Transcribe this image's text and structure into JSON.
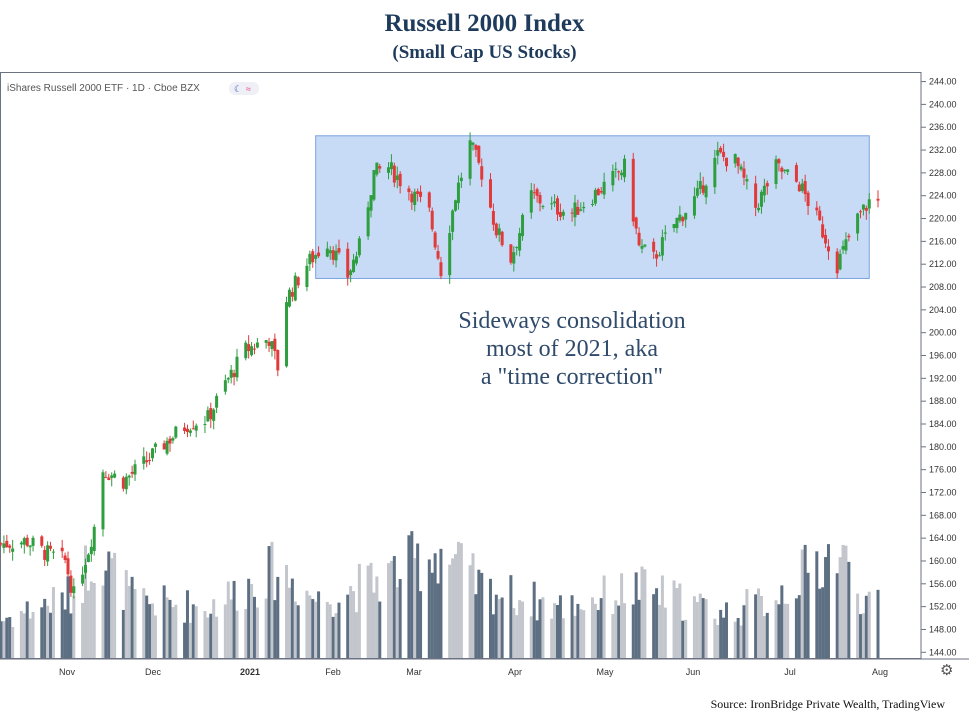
{
  "title": "Russell 2000 Index",
  "subtitle": "(Small Cap US Stocks)",
  "source": "Source: IronBridge Private Wealth, TradingView",
  "legend": {
    "symbol": "iShares Russell 2000 ETF · 1D · Cboe BZX",
    "icons": [
      "moon-icon",
      "wave-icon"
    ]
  },
  "annotation": [
    "Sideways consolidation",
    "most of 2021, aka",
    "a \"time correction\""
  ],
  "colors": {
    "up": "#26a69a",
    "up_body": "#2e9e3e",
    "down": "#e03a3a",
    "vol_dark": "#5d6f82",
    "vol_light": "#c3c6cc",
    "band_fill": "#c7dbf7",
    "band_stroke": "#7aa2df",
    "annotation": "#2f4a6b"
  },
  "chart_data": {
    "type": "candlestick",
    "xlabel": "",
    "ylabel": "",
    "x_ticks": [
      "Nov",
      "Dec",
      "2021",
      "Feb",
      "Mar",
      "Apr",
      "May",
      "Jun",
      "Jul",
      "Aug"
    ],
    "y_ticks": [
      "144.00",
      "148.00",
      "152.00",
      "156.00",
      "160.00",
      "164.00",
      "168.00",
      "172.00",
      "176.00",
      "180.00",
      "184.00",
      "188.00",
      "192.00",
      "196.00",
      "200.00",
      "204.00",
      "208.00",
      "212.00",
      "216.00",
      "220.00",
      "224.00",
      "228.00",
      "232.00",
      "236.00",
      "240.00",
      "244.00"
    ],
    "ylim": [
      143,
      245.5
    ],
    "x_range": [
      "2020-10-05",
      "2021-08-02"
    ],
    "consolidation_band": {
      "x_start": "2021-01-21",
      "x_end": "2021-07-30",
      "y_low": 209.5,
      "y_high": 234.5
    },
    "price_path": [
      [
        "2020-10-05",
        163
      ],
      [
        "2020-10-14",
        163.5
      ],
      [
        "2020-10-20",
        161.5
      ],
      [
        "2020-10-27",
        160
      ],
      [
        "2020-10-30",
        154
      ],
      [
        "2020-11-04",
        162
      ],
      [
        "2020-11-06",
        166
      ],
      [
        "2020-11-09",
        176
      ],
      [
        "2020-11-16",
        174
      ],
      [
        "2020-11-23",
        177
      ],
      [
        "2020-12-01",
        181
      ],
      [
        "2020-12-08",
        184
      ],
      [
        "2020-12-15",
        185
      ],
      [
        "2020-12-21",
        191
      ],
      [
        "2020-12-28",
        197
      ],
      [
        "2021-01-05",
        199
      ],
      [
        "2021-01-08",
        194
      ],
      [
        "2021-01-11",
        206
      ],
      [
        "2021-01-18",
        212
      ],
      [
        "2021-01-25",
        216
      ],
      [
        "2021-02-01",
        210
      ],
      [
        "2021-02-05",
        215
      ],
      [
        "2021-02-10",
        228
      ],
      [
        "2021-02-15",
        229
      ],
      [
        "2021-02-22",
        225
      ],
      [
        "2021-03-01",
        221
      ],
      [
        "2021-03-05",
        211
      ],
      [
        "2021-03-10",
        224
      ],
      [
        "2021-03-15",
        233
      ],
      [
        "2021-03-19",
        228
      ],
      [
        "2021-03-24",
        218
      ],
      [
        "2021-03-29",
        213
      ],
      [
        "2021-04-05",
        224
      ],
      [
        "2021-04-12",
        222
      ],
      [
        "2021-04-19",
        221
      ],
      [
        "2021-04-26",
        224
      ],
      [
        "2021-05-03",
        227
      ],
      [
        "2021-05-07",
        229
      ],
      [
        "2021-05-12",
        215
      ],
      [
        "2021-05-17",
        213
      ],
      [
        "2021-05-24",
        219
      ],
      [
        "2021-06-01",
        224
      ],
      [
        "2021-06-08",
        231
      ],
      [
        "2021-06-14",
        230
      ],
      [
        "2021-06-21",
        222
      ],
      [
        "2021-06-28",
        229
      ],
      [
        "2021-07-06",
        226
      ],
      [
        "2021-07-12",
        220
      ],
      [
        "2021-07-19",
        212
      ],
      [
        "2021-07-26",
        220
      ],
      [
        "2021-07-30",
        223
      ]
    ],
    "volume_path": [
      [
        "2020-10-05",
        0.3
      ],
      [
        "2020-10-30",
        0.5
      ],
      [
        "2020-11-06",
        0.85
      ],
      [
        "2020-11-20",
        0.45
      ],
      [
        "2020-12-15",
        0.4
      ],
      [
        "2021-01-08",
        0.7
      ],
      [
        "2021-01-22",
        0.45
      ],
      [
        "2021-02-10",
        0.6
      ],
      [
        "2021-03-05",
        0.85
      ],
      [
        "2021-03-19",
        0.55
      ],
      [
        "2021-04-15",
        0.4
      ],
      [
        "2021-05-12",
        0.55
      ],
      [
        "2021-06-10",
        0.35
      ],
      [
        "2021-06-25",
        0.45
      ],
      [
        "2021-07-19",
        0.85
      ],
      [
        "2021-07-30",
        0.4
      ]
    ]
  }
}
